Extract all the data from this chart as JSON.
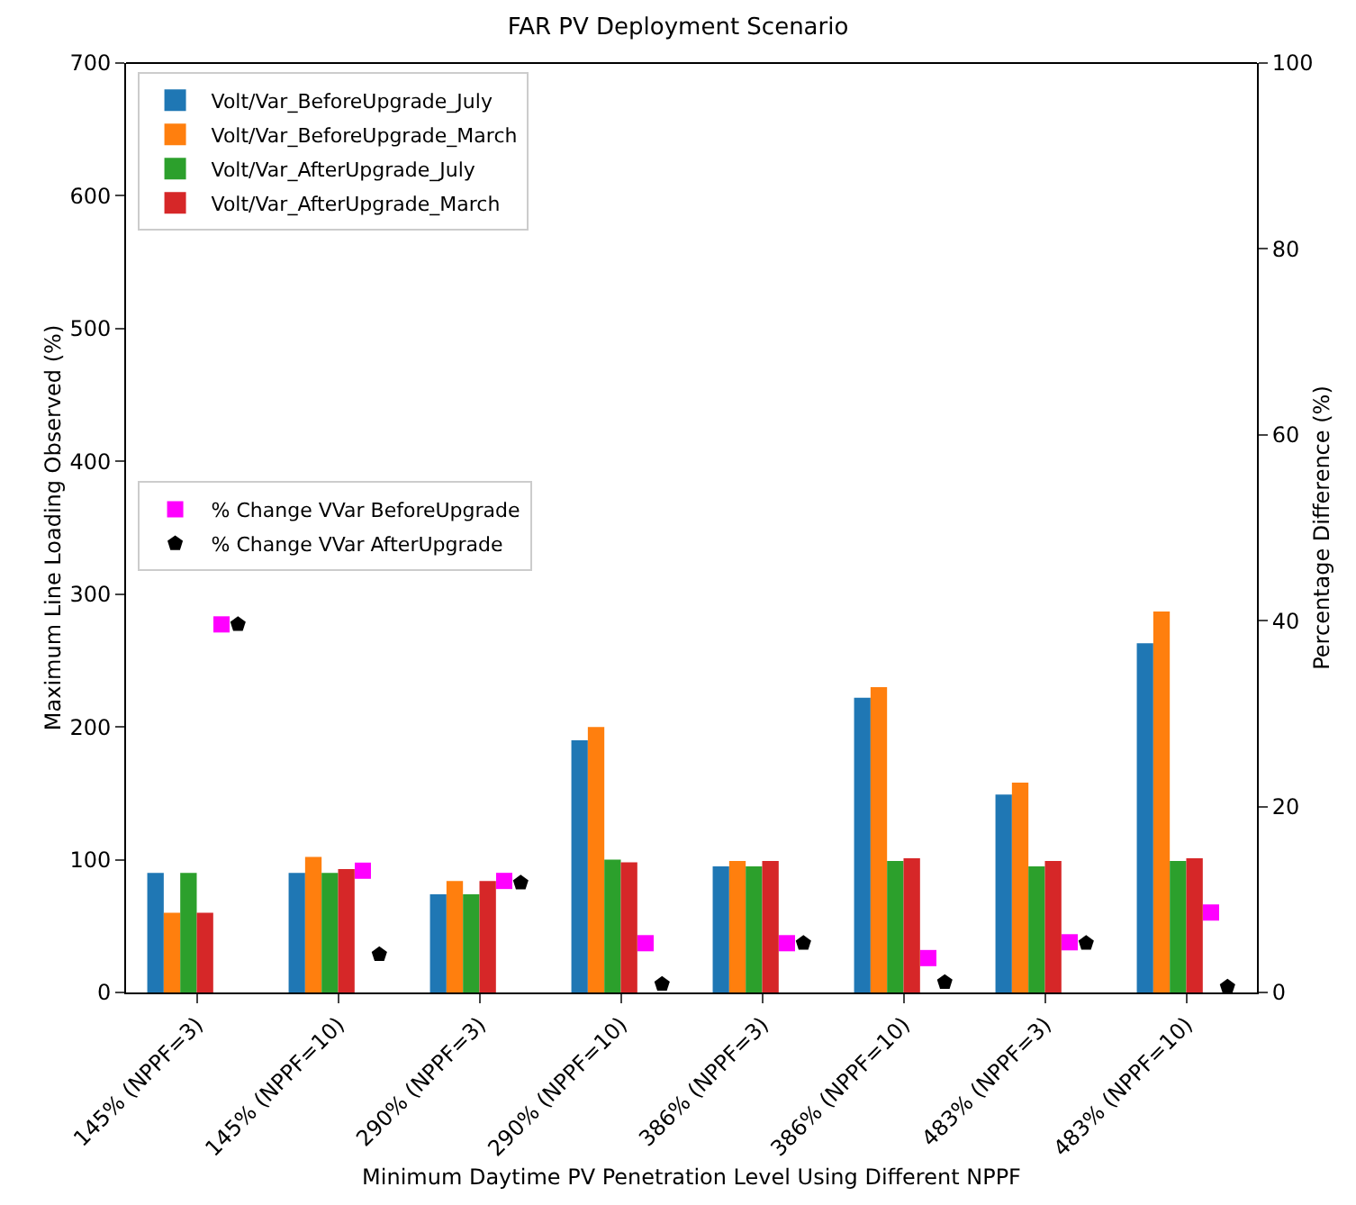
{
  "chart_data": {
    "type": "bar",
    "title": "FAR PV Deployment Scenario",
    "xlabel": "Minimum Daytime PV Penetration Level Using Different NPPF",
    "ylabel": "Maximum Line Loading Observed (%)",
    "y2label": "Percentage Difference (%)",
    "categories": [
      "145% (NPPF=3)",
      "145% (NPPF=10)",
      "290% (NPPF=3)",
      "290% (NPPF=10)",
      "386% (NPPF=3)",
      "386% (NPPF=10)",
      "483% (NPPF=3)",
      "483% (NPPF=10)"
    ],
    "series": [
      {
        "name": "Volt/Var_BeforeUpgrade_July",
        "color": "#1f77b4",
        "values": [
          90,
          90,
          74,
          190,
          95,
          222,
          149,
          263
        ]
      },
      {
        "name": "Volt/Var_BeforeUpgrade_March",
        "color": "#ff7f0e",
        "values": [
          60,
          102,
          84,
          200,
          99,
          230,
          158,
          287
        ]
      },
      {
        "name": "Volt/Var_AfterUpgrade_July",
        "color": "#2ca02c",
        "values": [
          90,
          90,
          74,
          100,
          95,
          99,
          95,
          99
        ]
      },
      {
        "name": "Volt/Var_AfterUpgrade_March",
        "color": "#d62728",
        "values": [
          60,
          93,
          84,
          98,
          99,
          101,
          99,
          101
        ]
      },
      {
        "name": "% Change VVar BeforeUpgrade",
        "type": "scatter",
        "axis": "y2",
        "marker": "square",
        "color": "#ff00ff",
        "x": [
          "145% (NPPF=3)",
          "145% (NPPF=10)",
          "290% (NPPF=3)",
          "290% (NPPF=10)",
          "386% (NPPF=3)",
          "386% (NPPF=10)",
          "483% (NPPF=3)",
          "483% (NPPF=10)"
        ],
        "values": [
          39.6,
          13.1,
          12.0,
          5.3,
          5.3,
          3.7,
          5.4,
          8.6
        ]
      },
      {
        "name": "% Change VVar AfterUpgrade",
        "type": "scatter",
        "axis": "y2",
        "color": "#000000",
        "x": [
          "145% (NPPF=3)",
          "145% (NPPF=10)",
          "290% (NPPF=3)",
          "290% (NPPF=10)",
          "386% (NPPF=3)",
          "386% (NPPF=10)",
          "483% (NPPF=3)",
          "483% (NPPF=10)"
        ],
        "values": [
          39.6,
          4.1,
          11.8,
          0.9,
          5.3,
          1.1,
          5.3,
          0.6
        ]
      }
    ],
    "ylim": [
      0,
      700
    ],
    "yticks": [
      0,
      100,
      200,
      300,
      400,
      500,
      600,
      700
    ],
    "y2lim": [
      0,
      100
    ],
    "y2ticks": [
      0,
      20,
      40,
      60,
      80,
      100
    ],
    "grid": false,
    "legend": "top left"
  }
}
